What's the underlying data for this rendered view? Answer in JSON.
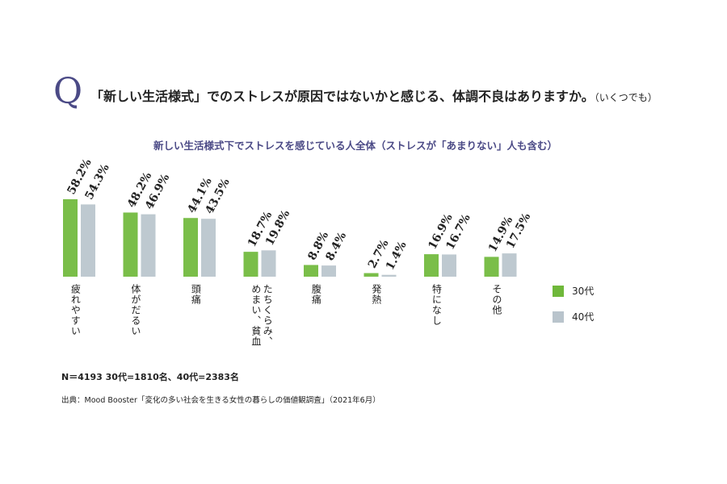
{
  "header": {
    "q_mark": "Q",
    "question": "「新しい生活様式」でのストレスが原因ではないかと感じる、体調不良はありますか。",
    "question_note": "（いくつでも）"
  },
  "chart_data": {
    "type": "bar",
    "title": "新しい生活様式下でストレスを感じている人全体（ストレスが「あまりない」人も含む）",
    "categories": [
      "疲れやすい",
      "体がだるい",
      "頭痛",
      "たちくらみ、めまい、貧血",
      "腹痛",
      "発熱",
      "特になし",
      "その他"
    ],
    "series": [
      {
        "name": "30代",
        "values": [
          58.2,
          48.2,
          44.1,
          18.7,
          8.8,
          2.7,
          16.9,
          14.9
        ],
        "color": "#6fb83a"
      },
      {
        "name": "40代",
        "values": [
          54.3,
          46.9,
          43.5,
          19.8,
          8.4,
          1.4,
          16.7,
          17.5
        ],
        "color": "#b9c4cc"
      }
    ],
    "value_labels": [
      [
        "58.2%",
        "48.2%",
        "44.1%",
        "18.7%",
        "8.8%",
        "2.7%",
        "16.9%",
        "14.9%"
      ],
      [
        "54.3%",
        "46.9%",
        "43.5%",
        "19.8%",
        "8.4%",
        "1.4%",
        "16.7%",
        "17.5%"
      ]
    ],
    "unit": "%",
    "ylim": [
      0,
      60
    ],
    "grid": false,
    "legend_position": "right"
  },
  "footer": {
    "note": "N＝4193 30代=1810名、40代=2383名",
    "source": "出典：Mood Booster「変化の多い社会を生きる女性の暮らしの価値観調査」（2021年6月）"
  }
}
